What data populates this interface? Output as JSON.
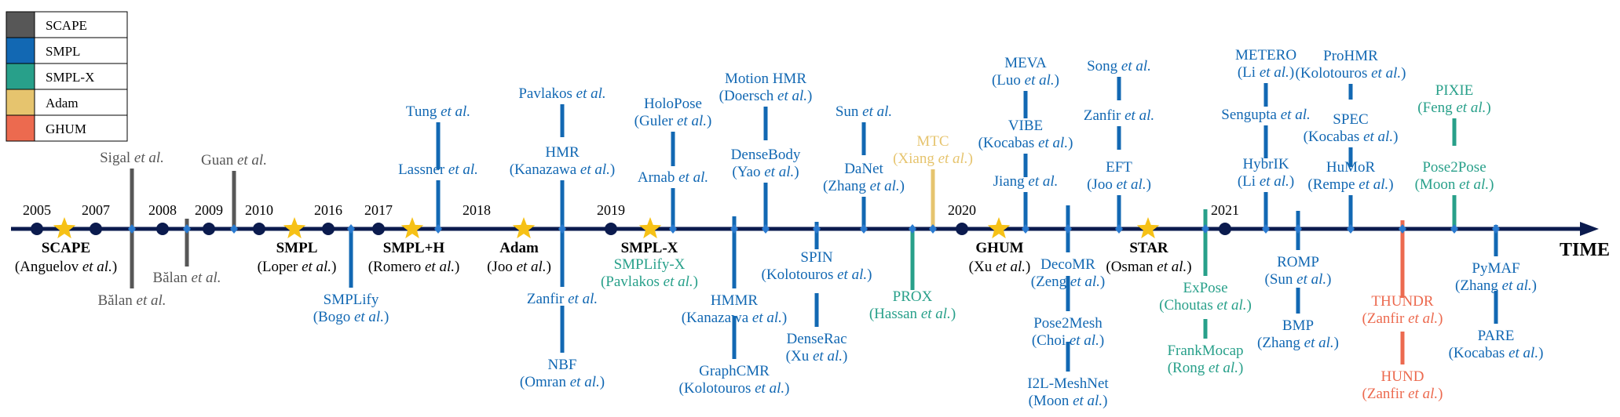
{
  "colors": {
    "scape": "#575757",
    "smpl": "#1268b3",
    "smplx": "#28a08a",
    "adam": "#e6c46e",
    "ghum": "#ec6a4f",
    "axis": "#0b1b4e",
    "star": "#f6c116",
    "text_dark": "#000000"
  },
  "legend": [
    {
      "label": "SCAPE",
      "color": "scape"
    },
    {
      "label": "SMPL",
      "color": "smpl"
    },
    {
      "label": "SMPL-X",
      "color": "smplx"
    },
    {
      "label": "Adam",
      "color": "adam"
    },
    {
      "label": "GHUM",
      "color": "ghum"
    }
  ],
  "axis_label": "TIME",
  "years": [
    "2005",
    "2007",
    "2008",
    "2009",
    "2010",
    "2016",
    "2017",
    "2018",
    "2019",
    "2020",
    "2021"
  ],
  "models": [
    {
      "name": "SCAPE",
      "author": "Anguelov",
      "etal": "et al.",
      "close": ")"
    },
    {
      "name": "SMPL",
      "author": "Loper",
      "etal": "et al.",
      "close": ")"
    },
    {
      "name": "SMPL+H",
      "author": "Romero",
      "etal": "et al.",
      "close": ")"
    },
    {
      "name": "Adam",
      "author": "Joo",
      "etal": "et al.",
      "close": ")"
    },
    {
      "name": "SMPL-X",
      "author": "",
      "etal": "",
      "close": ""
    },
    {
      "name": "GHUM",
      "author": "Xu",
      "etal": "et al.",
      "close": ")"
    },
    {
      "name": "STAR",
      "author": "Osman",
      "etal": "et al.",
      "close": ")"
    }
  ],
  "methods": [
    {
      "l1": "Sigal",
      "l1i": "et al.",
      "l2": "",
      "l2i": "",
      "l2c": "",
      "color": "scape"
    },
    {
      "l1": "Bălan",
      "l1i": "et al.",
      "l2": "",
      "l2i": "",
      "l2c": "",
      "color": "scape"
    },
    {
      "l1": "Bălan",
      "l1i": "et al.",
      "l2": "",
      "l2i": "",
      "l2c": "",
      "color": "scape"
    },
    {
      "l1": "Guan",
      "l1i": "et al.",
      "l2": "",
      "l2i": "",
      "l2c": "",
      "color": "scape"
    },
    {
      "l1": "SMPLify",
      "l1i": "",
      "l2": "(Bogo",
      "l2i": "et al.",
      "l2c": ")",
      "color": "smpl"
    },
    {
      "l1": "Tung",
      "l1i": "et al.",
      "l2": "",
      "l2i": "",
      "l2c": "",
      "color": "smpl"
    },
    {
      "l1": "Lassner",
      "l1i": "et al.",
      "l2": "",
      "l2i": "",
      "l2c": "",
      "color": "smpl"
    },
    {
      "l1": "Pavlakos",
      "l1i": "et al.",
      "l2": "",
      "l2i": "",
      "l2c": "",
      "color": "smpl"
    },
    {
      "l1": "HMR",
      "l1i": "",
      "l2": "(Kanazawa",
      "l2i": "et al.",
      "l2c": ")",
      "color": "smpl"
    },
    {
      "l1": "Zanfir",
      "l1i": "et al.",
      "l2": "",
      "l2i": "",
      "l2c": "",
      "color": "smpl"
    },
    {
      "l1": "NBF",
      "l1i": "",
      "l2": "(Omran",
      "l2i": "et al.",
      "l2c": ")",
      "color": "smpl"
    },
    {
      "l1": "SMPLify-X",
      "l1i": "",
      "l2": "(Pavlakos",
      "l2i": "et al.",
      "l2c": ")",
      "color": "smplx"
    },
    {
      "l1": "HoloPose",
      "l1i": "",
      "l2": "(Guler",
      "l2i": "et al.",
      "l2c": ")",
      "color": "smpl"
    },
    {
      "l1": "Arnab",
      "l1i": "et al.",
      "l2": "",
      "l2i": "",
      "l2c": "",
      "color": "smpl"
    },
    {
      "l1": "HMMR",
      "l1i": "",
      "l2": "(Kanazawa",
      "l2i": "et al.",
      "l2c": ")",
      "color": "smpl"
    },
    {
      "l1": "GraphCMR",
      "l1i": "",
      "l2": "(Kolotouros",
      "l2i": "et al.",
      "l2c": ")",
      "color": "smpl"
    },
    {
      "l1": "Motion HMR",
      "l1i": "",
      "l2": "(Doersch",
      "l2i": "et al.",
      "l2c": ")",
      "color": "smpl"
    },
    {
      "l1": "DenseBody",
      "l1i": "",
      "l2": "(Yao",
      "l2i": "et al.",
      "l2c": ")",
      "color": "smpl"
    },
    {
      "l1": "SPIN",
      "l1i": "",
      "l2": "(Kolotouros",
      "l2i": "et al.",
      "l2c": ")",
      "color": "smpl"
    },
    {
      "l1": "DenseRac",
      "l1i": "",
      "l2": "(Xu",
      "l2i": "et al.",
      "l2c": ")",
      "color": "smpl"
    },
    {
      "l1": "Sun",
      "l1i": "et al.",
      "l2": "",
      "l2i": "",
      "l2c": "",
      "color": "smpl"
    },
    {
      "l1": "DaNet",
      "l1i": "",
      "l2": "(Zhang",
      "l2i": "et al.",
      "l2c": ")",
      "color": "smpl"
    },
    {
      "l1": "PROX",
      "l1i": "",
      "l2": "(Hassan",
      "l2i": "et al.",
      "l2c": ")",
      "color": "smplx"
    },
    {
      "l1": "MTC",
      "l1i": "",
      "l2": "(Xiang",
      "l2i": "et al.",
      "l2c": ")",
      "color": "adam"
    },
    {
      "l1": "MEVA",
      "l1i": "",
      "l2": "(Luo",
      "l2i": "et al.",
      "l2c": ")",
      "color": "smpl"
    },
    {
      "l1": "VIBE",
      "l1i": "",
      "l2": "(Kocabas",
      "l2i": "et al.",
      "l2c": ")",
      "color": "smpl"
    },
    {
      "l1": "Jiang",
      "l1i": "et al.",
      "l2": "",
      "l2i": "",
      "l2c": "",
      "color": "smpl"
    },
    {
      "l1": "DecoMR",
      "l1i": "",
      "l2": "(Zeng",
      "l2i": "et al.",
      "l2c": ")",
      "color": "smpl"
    },
    {
      "l1": "Pose2Mesh",
      "l1i": "",
      "l2": "(Choi",
      "l2i": "et al.",
      "l2c": ")",
      "color": "smpl"
    },
    {
      "l1": "I2L-MeshNet",
      "l1i": "",
      "l2": "(Moon",
      "l2i": "et al.",
      "l2c": ")",
      "color": "smpl"
    },
    {
      "l1": "Song",
      "l1i": "et al.",
      "l2": "",
      "l2i": "",
      "l2c": "",
      "color": "smpl"
    },
    {
      "l1": "Zanfir",
      "l1i": "et al.",
      "l2": "",
      "l2i": "",
      "l2c": "",
      "color": "smpl"
    },
    {
      "l1": "EFT",
      "l1i": "",
      "l2": "(Joo",
      "l2i": "et al.",
      "l2c": ")",
      "color": "smpl"
    },
    {
      "l1": "ExPose",
      "l1i": "",
      "l2": "(Choutas",
      "l2i": "et al.",
      "l2c": ")",
      "color": "smplx"
    },
    {
      "l1": "FrankMocap",
      "l1i": "",
      "l2": "(Rong",
      "l2i": "et al.",
      "l2c": ")",
      "color": "smplx"
    },
    {
      "l1": "METERO",
      "l1i": "",
      "l2": "(Li",
      "l2i": "et al.",
      "l2c": ")",
      "color": "smpl"
    },
    {
      "l1": "Sengupta",
      "l1i": "et al.",
      "l2": "",
      "l2i": "",
      "l2c": "",
      "color": "smpl"
    },
    {
      "l1": "HybrIK",
      "l1i": "",
      "l2": "(Li",
      "l2i": "et al.",
      "l2c": ")",
      "color": "smpl"
    },
    {
      "l1": "ROMP",
      "l1i": "",
      "l2": "(Sun",
      "l2i": "et al.",
      "l2c": ")",
      "color": "smpl"
    },
    {
      "l1": "BMP",
      "l1i": "",
      "l2": "(Zhang",
      "l2i": "et al.",
      "l2c": ")",
      "color": "smpl"
    },
    {
      "l1": "ProHMR",
      "l1i": "",
      "l2": "(Kolotouros",
      "l2i": "et al.",
      "l2c": ")",
      "color": "smpl"
    },
    {
      "l1": "SPEC",
      "l1i": "",
      "l2": "(Kocabas",
      "l2i": "et al.",
      "l2c": ")",
      "color": "smpl"
    },
    {
      "l1": "HuMoR",
      "l1i": "",
      "l2": "(Rempe",
      "l2i": "et al.",
      "l2c": ")",
      "color": "smpl"
    },
    {
      "l1": "THUNDR",
      "l1i": "",
      "l2": "(Zanfir",
      "l2i": "et al.",
      "l2c": ")",
      "color": "ghum"
    },
    {
      "l1": "HUND",
      "l1i": "",
      "l2": "(Zanfir",
      "l2i": "et al.",
      "l2c": ")",
      "color": "ghum"
    },
    {
      "l1": "PIXIE",
      "l1i": "",
      "l2": "(Feng",
      "l2i": "et al.",
      "l2c": ")",
      "color": "smplx"
    },
    {
      "l1": "Pose2Pose",
      "l1i": "",
      "l2": "(Moon",
      "l2i": "et al.",
      "l2c": ")",
      "color": "smplx"
    },
    {
      "l1": "PyMAF",
      "l1i": "",
      "l2": "(Zhang",
      "l2i": "et al.",
      "l2c": ")",
      "color": "smpl"
    },
    {
      "l1": "PARE",
      "l1i": "",
      "l2": "(Kocabas",
      "l2i": "et al.",
      "l2c": ")",
      "color": "smpl"
    }
  ]
}
